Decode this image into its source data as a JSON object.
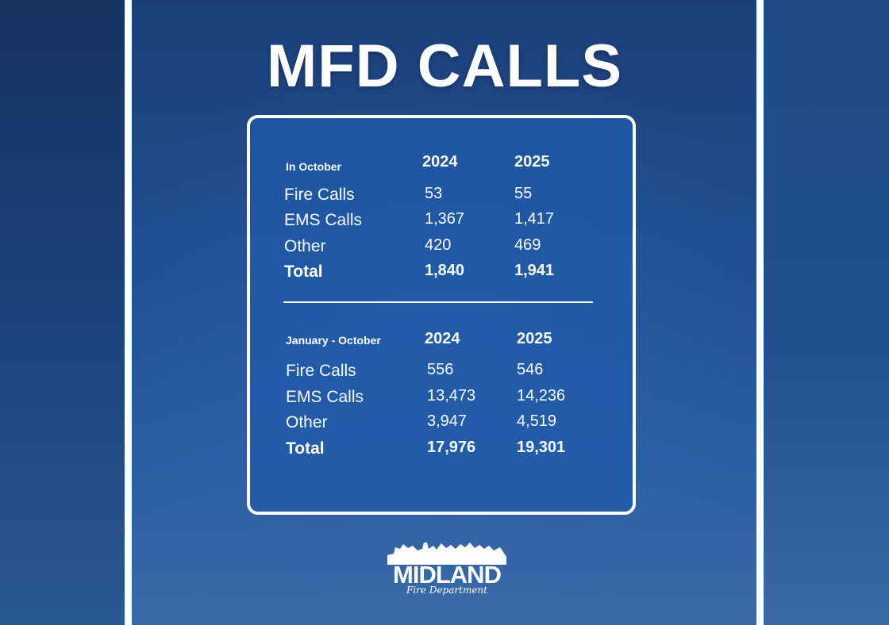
{
  "title": "MFD CALLS",
  "sections": [
    {
      "label": "In October",
      "columns": [
        "2024",
        "2025"
      ],
      "rows": [
        [
          "Fire Calls",
          "53",
          "55"
        ],
        [
          "EMS Calls",
          "1,367",
          "1,417"
        ],
        [
          "Other",
          "420",
          "469"
        ],
        [
          "Total",
          "1,840",
          "1,941"
        ]
      ]
    },
    {
      "label": "January - October",
      "columns": [
        "2024",
        "2025"
      ],
      "rows": [
        [
          "Fire Calls",
          "556",
          "546"
        ],
        [
          "EMS Calls",
          "13,473",
          "14,236"
        ],
        [
          "Other",
          "3,947",
          "4,519"
        ],
        [
          "Total",
          "17,976",
          "19,301"
        ]
      ]
    }
  ],
  "logo": {
    "name": "MIDLAND",
    "subtitle": "Fire Department"
  }
}
